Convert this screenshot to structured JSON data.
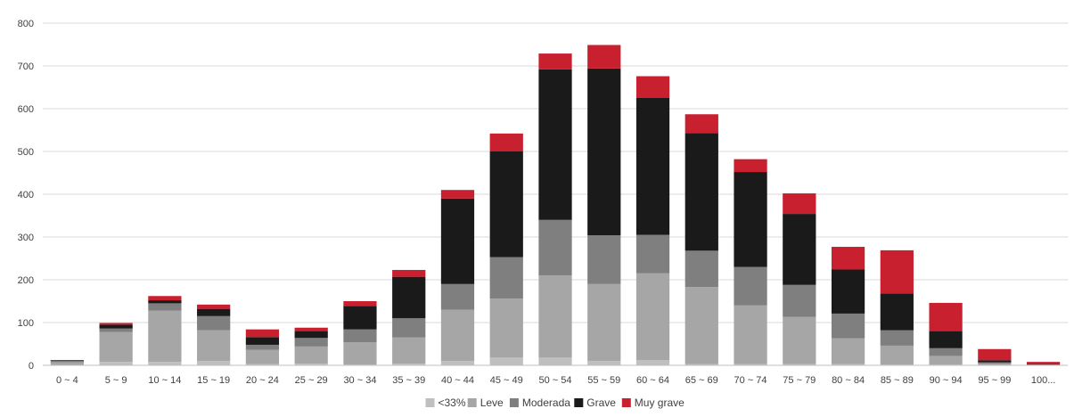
{
  "chart_data": {
    "type": "bar",
    "stacked": true,
    "title": "",
    "xlabel": "",
    "ylabel": "",
    "ylim": [
      0,
      800
    ],
    "y_ticks": [
      0,
      100,
      200,
      300,
      400,
      500,
      600,
      700,
      800
    ],
    "grid": true,
    "legend_position": "bottom",
    "categories": [
      "0 ~ 4",
      "5 ~ 9",
      "10 ~ 14",
      "15 ~ 19",
      "20 ~ 24",
      "25 ~ 29",
      "30 ~ 34",
      "35 ~ 39",
      "40 ~ 44",
      "45 ~ 49",
      "50 ~ 54",
      "55 ~ 59",
      "60 ~ 64",
      "65 ~ 69",
      "70 ~ 74",
      "75 ~ 79",
      "80 ~ 84",
      "85 ~ 89",
      "90 ~ 94",
      "95 ~ 99",
      "100..."
    ],
    "series": [
      {
        "name": "<33%",
        "color": "#bfbfbf",
        "values": [
          1,
          8,
          8,
          10,
          3,
          4,
          2,
          4,
          10,
          18,
          18,
          10,
          12,
          3,
          3,
          3,
          3,
          2,
          2,
          1,
          0
        ]
      },
      {
        "name": "Leve",
        "color": "#a6a6a6",
        "values": [
          6,
          70,
          120,
          72,
          33,
          40,
          52,
          61,
          120,
          138,
          192,
          180,
          203,
          180,
          137,
          110,
          60,
          44,
          20,
          3,
          1
        ]
      },
      {
        "name": "Moderada",
        "color": "#7f7f7f",
        "values": [
          3,
          8,
          17,
          33,
          12,
          20,
          30,
          45,
          60,
          97,
          130,
          114,
          90,
          85,
          90,
          75,
          58,
          36,
          18,
          3,
          1
        ]
      },
      {
        "name": "Grave",
        "color": "#1a1a1a",
        "values": [
          2,
          9,
          7,
          17,
          18,
          16,
          55,
          97,
          200,
          247,
          352,
          390,
          320,
          275,
          222,
          166,
          103,
          86,
          40,
          5,
          1
        ]
      },
      {
        "name": "Muy grave",
        "color": "#c8202f",
        "values": [
          0,
          4,
          10,
          10,
          18,
          8,
          11,
          16,
          20,
          42,
          37,
          55,
          51,
          44,
          30,
          48,
          53,
          101,
          66,
          26,
          5
        ]
      }
    ]
  }
}
